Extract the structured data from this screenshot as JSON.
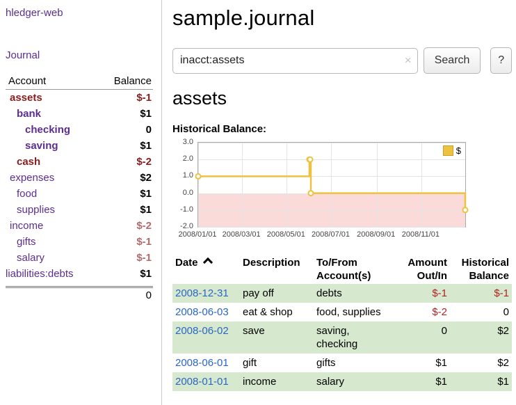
{
  "colors": {
    "link_purple": "#5c2d91",
    "link_blue": "#2b66c4",
    "negative_dark": "#8b1c1c",
    "negative_soft": "#b36a6a",
    "negative_bright": "#b22222",
    "row_green": "#d6e8cd",
    "chart_yellow": "#edc240",
    "chart_yellow_border": "#c9a227",
    "chart_negative_bg": "#fbdada"
  },
  "sidebar": {
    "app_title": "hledger-web",
    "journal_link": "Journal",
    "columns": {
      "account": "Account",
      "balance": "Balance"
    },
    "accounts": [
      {
        "name": "assets",
        "balance": "$-1",
        "indent": 1,
        "bold": true
      },
      {
        "name": "bank",
        "balance": "$1",
        "indent": 2,
        "bold": true
      },
      {
        "name": "checking",
        "balance": "0",
        "indent": 3,
        "bold": true
      },
      {
        "name": "saving",
        "balance": "$1",
        "indent": 3,
        "bold": true
      },
      {
        "name": "cash",
        "balance": "$-2",
        "indent": 2,
        "bold": true
      },
      {
        "name": "expenses",
        "balance": "$2",
        "indent": 1,
        "bold": false
      },
      {
        "name": "food",
        "balance": "$1",
        "indent": 2,
        "bold": false
      },
      {
        "name": "supplies",
        "balance": "$1",
        "indent": 2,
        "bold": false
      },
      {
        "name": "income",
        "balance": "$-2",
        "indent": 1,
        "bold": false
      },
      {
        "name": "gifts",
        "balance": "$-1",
        "indent": 2,
        "bold": false
      },
      {
        "name": "salary",
        "balance": "$-1",
        "indent": 2,
        "bold": false
      },
      {
        "name": "liabilities:debts",
        "balance": "$1",
        "indent": 0,
        "bold": false
      }
    ],
    "total": "0"
  },
  "main": {
    "title": "sample.journal",
    "search": {
      "value": "inacct:assets",
      "clear_icon": "×",
      "button_label": "Search",
      "help_label": "?"
    },
    "account_heading": "assets",
    "chart_title": "Historical Balance:"
  },
  "chart_data": {
    "type": "line",
    "style": "step-after",
    "title": "Historical Balance",
    "legend": [
      {
        "label": "$"
      }
    ],
    "ylim": [
      -2,
      3
    ],
    "xdomain": [
      "2008-01-01",
      "2008-12-31"
    ],
    "y_ticks": [
      {
        "v": 3,
        "label": "3.0"
      },
      {
        "v": 2,
        "label": "2.0"
      },
      {
        "v": 1,
        "label": "1.0"
      },
      {
        "v": 0,
        "label": "0.0"
      },
      {
        "v": -1,
        "label": "-1.0"
      },
      {
        "v": -2,
        "label": "-2.0"
      }
    ],
    "x_ticks": [
      {
        "date": "2008-01-01",
        "label": "2008/01/01"
      },
      {
        "date": "2008-03-01",
        "label": "2008/03/01"
      },
      {
        "date": "2008-05-01",
        "label": "2008/05/01"
      },
      {
        "date": "2008-07-01",
        "label": "2008/07/01"
      },
      {
        "date": "2008-09-01",
        "label": "2008/09/01"
      },
      {
        "date": "2008-11-01",
        "label": "2008/11/01"
      }
    ],
    "points": [
      {
        "date": "2008-01-01",
        "value": 1
      },
      {
        "date": "2008-06-01",
        "value": 2
      },
      {
        "date": "2008-06-02",
        "value": 2
      },
      {
        "date": "2008-06-03",
        "value": 0
      },
      {
        "date": "2008-12-31",
        "value": -1
      }
    ]
  },
  "register": {
    "headers": {
      "date": [
        "Date"
      ],
      "description": [
        "Description"
      ],
      "accounts": [
        "To/From",
        "Account(s)"
      ],
      "amount": [
        "Amount",
        "Out/In"
      ],
      "balance": [
        "Historical",
        "Balance"
      ]
    },
    "rows": [
      {
        "date": "2008-12-31",
        "description": "pay off",
        "accounts_lines": [
          "debts"
        ],
        "amount": "$-1",
        "balance": "$-1"
      },
      {
        "date": "2008-06-03",
        "description": "eat & shop",
        "accounts_lines": [
          "food, supplies"
        ],
        "amount": "$-2",
        "balance": "0"
      },
      {
        "date": "2008-06-02",
        "description": "save",
        "accounts_lines": [
          "saving,",
          "checking"
        ],
        "amount": "0",
        "balance": "$2"
      },
      {
        "date": "2008-06-01",
        "description": "gift",
        "accounts_lines": [
          "gifts"
        ],
        "amount": "$1",
        "balance": "$2"
      },
      {
        "date": "2008-01-01",
        "description": "income",
        "accounts_lines": [
          "salary"
        ],
        "amount": "$1",
        "balance": "$1"
      }
    ]
  }
}
